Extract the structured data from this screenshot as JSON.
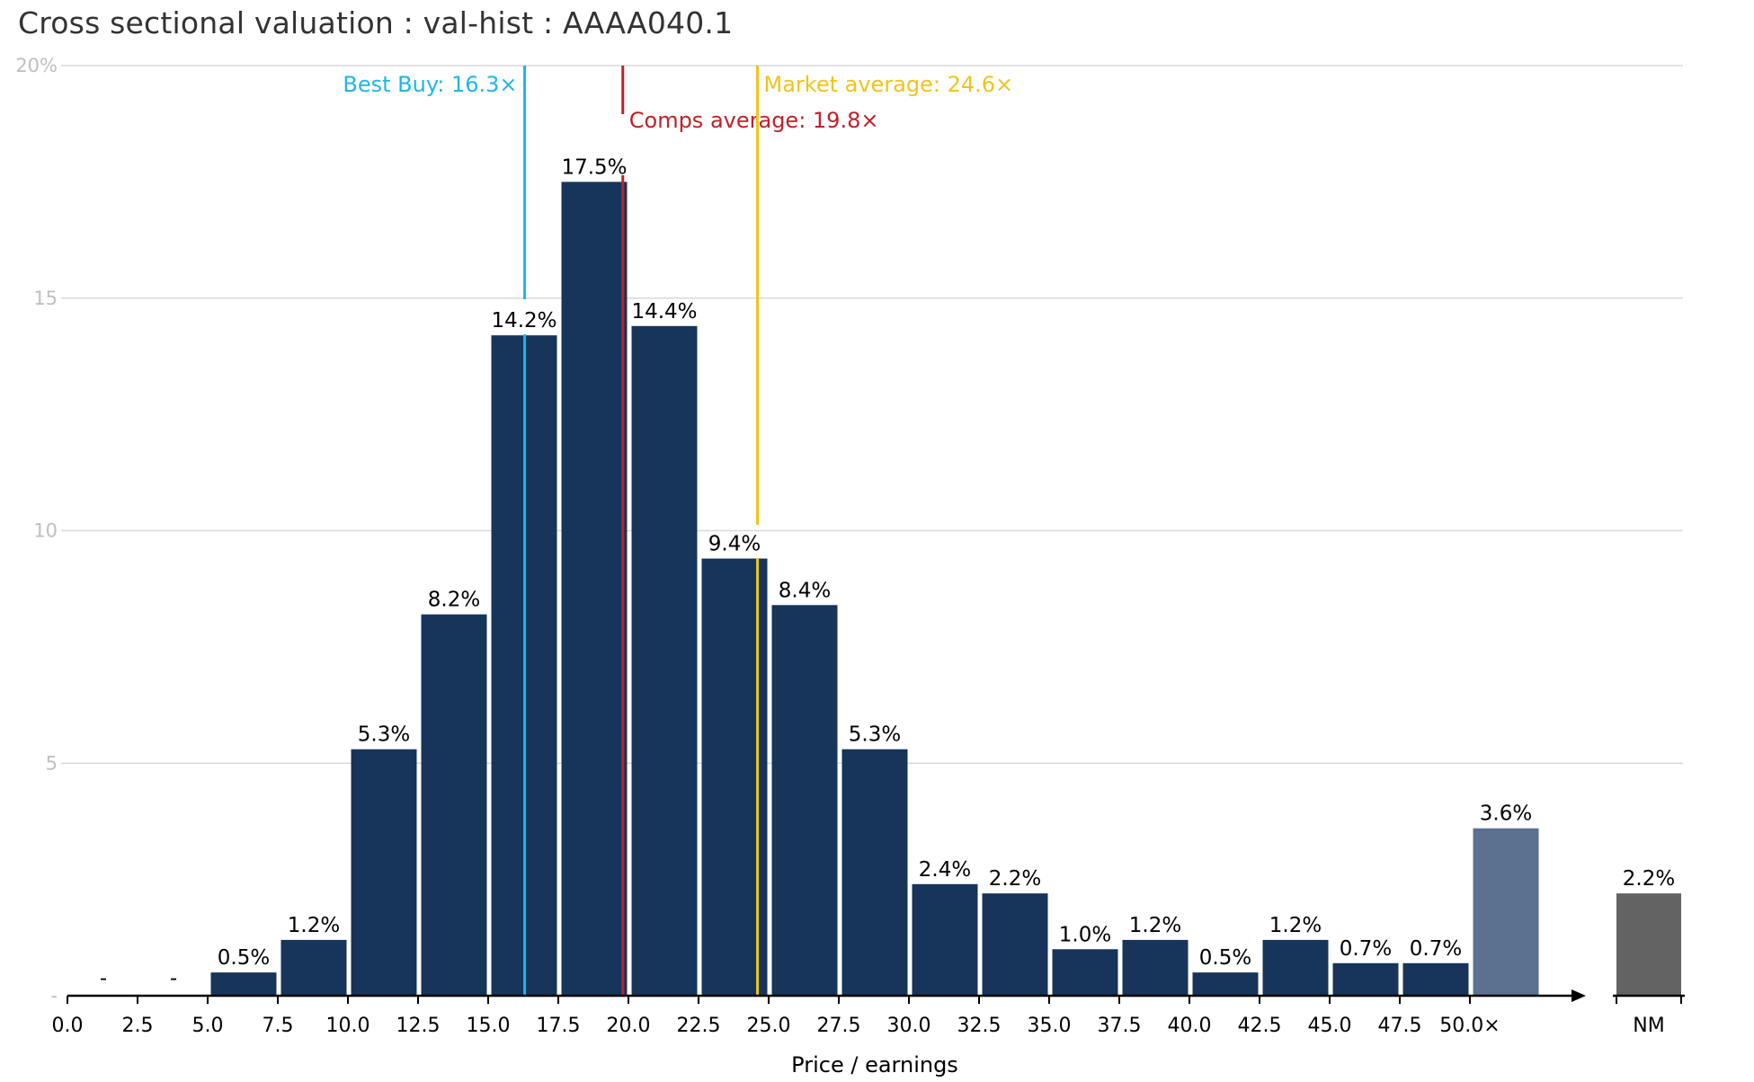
{
  "title": "Cross sectional valuation : val-hist : AAAA040.1",
  "chart_data": {
    "type": "bar",
    "title": "Cross sectional valuation : val-hist : AAAA040.1",
    "xlabel": "Price / earnings",
    "ylabel": "",
    "ylim": [
      0,
      20
    ],
    "yticks": [
      "-",
      "5",
      "10",
      "15",
      "20%"
    ],
    "grid": true,
    "bin_edges": [
      "0.0",
      "2.5",
      "5.0",
      "7.5",
      "10.0",
      "12.5",
      "15.0",
      "17.5",
      "20.0",
      "22.5",
      "25.0",
      "27.5",
      "30.0",
      "32.5",
      "35.0",
      "37.5",
      "40.0",
      "42.5",
      "45.0",
      "47.5",
      "50.0×"
    ],
    "bins": [
      {
        "range": "0.0–2.5",
        "value": 0,
        "label": "-"
      },
      {
        "range": "2.5–5.0",
        "value": 0,
        "label": "-"
      },
      {
        "range": "5.0–7.5",
        "value": 0.5,
        "label": "0.5%"
      },
      {
        "range": "7.5–10.0",
        "value": 1.2,
        "label": "1.2%"
      },
      {
        "range": "10.0–12.5",
        "value": 5.3,
        "label": "5.3%"
      },
      {
        "range": "12.5–15.0",
        "value": 8.2,
        "label": "8.2%"
      },
      {
        "range": "15.0–17.5",
        "value": 14.2,
        "label": "14.2%"
      },
      {
        "range": "17.5–20.0",
        "value": 17.5,
        "label": "17.5%"
      },
      {
        "range": "20.0–22.5",
        "value": 14.4,
        "label": "14.4%"
      },
      {
        "range": "22.5–25.0",
        "value": 9.4,
        "label": "9.4%"
      },
      {
        "range": "25.0–27.5",
        "value": 8.4,
        "label": "8.4%"
      },
      {
        "range": "27.5–30.0",
        "value": 5.3,
        "label": "5.3%"
      },
      {
        "range": "30.0–32.5",
        "value": 2.4,
        "label": "2.4%"
      },
      {
        "range": "32.5–35.0",
        "value": 2.2,
        "label": "2.2%"
      },
      {
        "range": "35.0–37.5",
        "value": 1.0,
        "label": "1.0%"
      },
      {
        "range": "37.5–40.0",
        "value": 1.2,
        "label": "1.2%"
      },
      {
        "range": "40.0–42.5",
        "value": 0.5,
        "label": "0.5%"
      },
      {
        "range": "42.5–45.0",
        "value": 1.2,
        "label": "1.2%"
      },
      {
        "range": "45.0–47.5",
        "value": 0.7,
        "label": "0.7%"
      },
      {
        "range": "47.5–50.0",
        "value": 0.7,
        "label": "0.7%"
      },
      {
        "range": "50.0+",
        "value": 3.6,
        "label": "3.6%"
      }
    ],
    "nm_bin": {
      "label": "NM",
      "value": 2.2,
      "data_label": "2.2%"
    },
    "reference_lines": [
      {
        "name": "Best Buy",
        "label": "Best Buy:  16.3×",
        "x": 16.3,
        "color": "#1fb6e8"
      },
      {
        "name": "Comps average",
        "label": "Comps average:  19.8×",
        "x": 19.8,
        "color": "#c0202a"
      },
      {
        "name": "Market average",
        "label": "Market average:  24.6×",
        "x": 24.6,
        "color": "#f0c419"
      }
    ],
    "colors": {
      "bar": "#17345a",
      "overflow_bar": "#5c7190",
      "nm_bar": "#636363",
      "grid": "#d9d9d9",
      "axis": "#000000"
    }
  }
}
